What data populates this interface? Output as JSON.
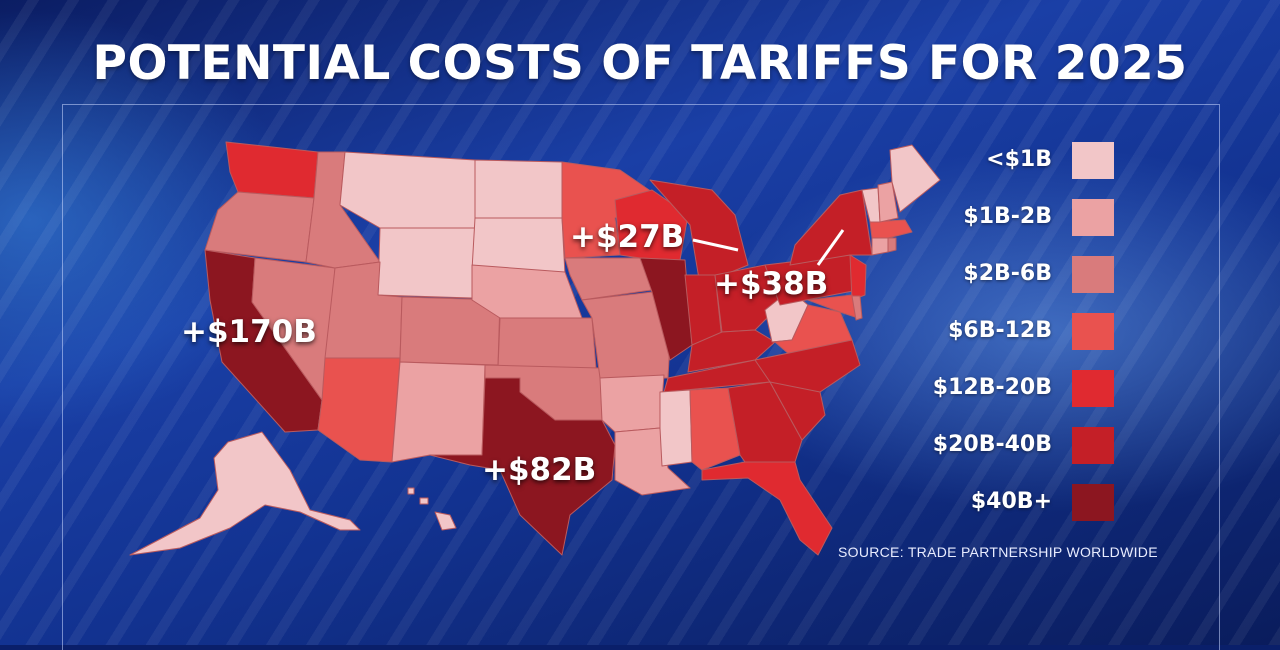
{
  "title": "POTENTIAL COSTS OF TARIFFS FOR 2025",
  "colors": {
    "lt1b": "#f2c6c8",
    "b1_2": "#eba2a3",
    "b2_6": "#d97b7c",
    "b6_12": "#e9524f",
    "b12_20": "#e02a30",
    "b20_40": "#c41f27",
    "b40p": "#8c1620"
  },
  "legend": [
    {
      "label": "<$1B",
      "color": "#f2c6c8"
    },
    {
      "label": "$1B-2B",
      "color": "#eba2a3"
    },
    {
      "label": "$2B-6B",
      "color": "#d97b7c"
    },
    {
      "label": "$6B-12B",
      "color": "#e9524f"
    },
    {
      "label": "$12B-20B",
      "color": "#e02a30"
    },
    {
      "label": "$20B-40B",
      "color": "#c41f27"
    },
    {
      "label": "$40B+",
      "color": "#8c1620"
    }
  ],
  "callouts": {
    "california": "+$170B",
    "texas": "+$82B",
    "michigan": "+$27B",
    "new_york": "+$38B"
  },
  "source": "SOURCE: TRADE PARTNERSHIP WORLDWIDE"
}
